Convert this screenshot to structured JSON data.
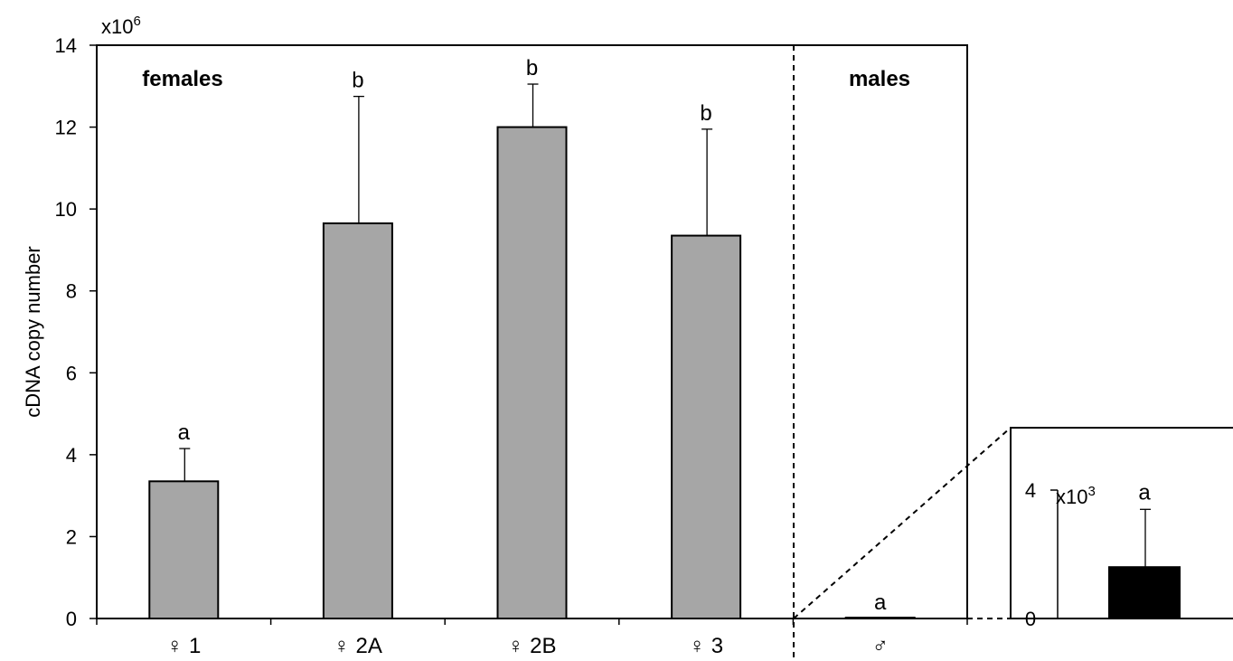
{
  "chart_data": [
    {
      "type": "bar",
      "categories": [
        "♀ 1",
        "♀ 2A",
        "♀ 2B",
        "♀ 3",
        "♂"
      ],
      "values": [
        3.35,
        9.65,
        12.0,
        9.35,
        0.0016
      ],
      "errors": [
        0.8,
        3.1,
        1.05,
        2.6,
        0.0018
      ],
      "letters": [
        "a",
        "b",
        "b",
        "b",
        "a"
      ],
      "ylabel": "cDNA copy number",
      "yscale_label": "x10",
      "yscale_exp": "6",
      "ylim": [
        0,
        14
      ],
      "yticks": [
        "0",
        "2",
        "4",
        "6",
        "8",
        "10",
        "12",
        "14"
      ],
      "group_labels": [
        "females",
        "males"
      ],
      "bar_colors": [
        "#a6a6a6",
        "#a6a6a6",
        "#a6a6a6",
        "#a6a6a6",
        "#a6a6a6"
      ]
    },
    {
      "type": "bar",
      "categories": [
        ""
      ],
      "values": [
        1.6
      ],
      "errors": [
        1.8
      ],
      "letters": [
        "a"
      ],
      "yscale_label": "x10",
      "yscale_exp": "3",
      "ylim": [
        0,
        4
      ],
      "yticks": [
        "0",
        "4"
      ],
      "bar_colors": [
        "#000000"
      ]
    }
  ]
}
